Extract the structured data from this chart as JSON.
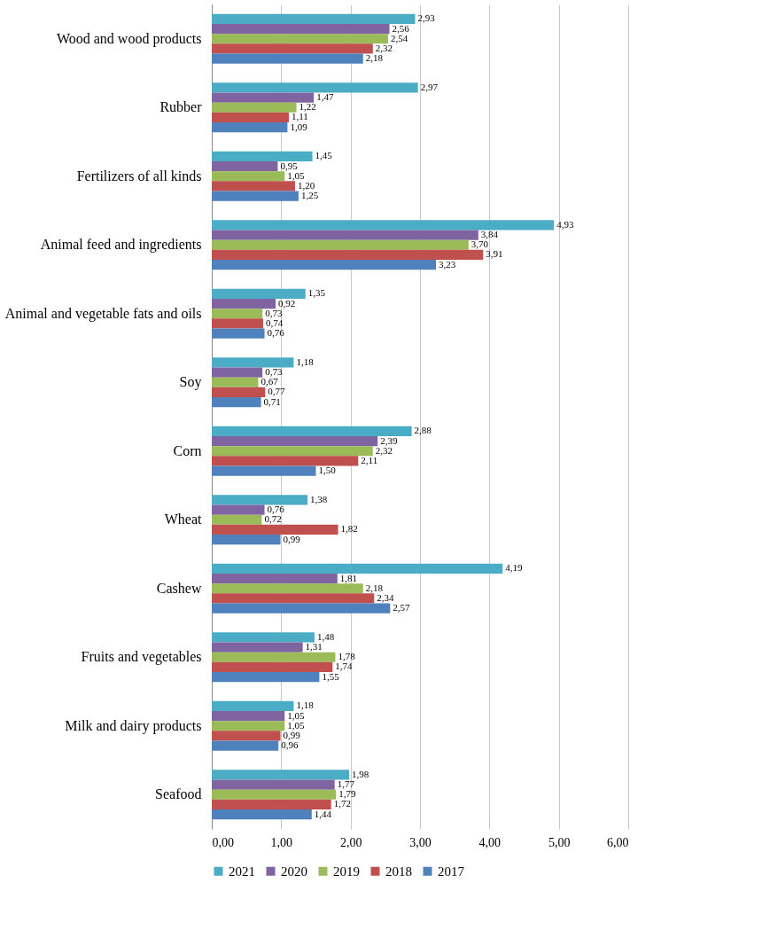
{
  "chart_data": {
    "type": "bar",
    "orientation": "horizontal",
    "categories": [
      "Wood and wood products",
      "Rubber",
      "Fertilizers of all kinds",
      "Animal feed and ingredients",
      "Animal and vegetable fats and oils",
      "Soy",
      "Corn",
      "Wheat",
      "Cashew",
      "Fruits and vegetables",
      "Milk and dairy products",
      "Seafood"
    ],
    "series": [
      {
        "name": "2021",
        "color": "#4bacc6",
        "values": [
          2.93,
          2.97,
          1.45,
          4.93,
          1.35,
          1.18,
          2.88,
          1.38,
          4.19,
          1.48,
          1.18,
          1.98
        ],
        "value_labels": [
          "2,93",
          "2,97",
          "1,45",
          "4,93",
          "1,35",
          "1,18",
          "2,88",
          "1,38",
          "4,19",
          "1,48",
          "1,18",
          "1,98"
        ]
      },
      {
        "name": "2020",
        "color": "#8064a2",
        "values": [
          2.56,
          1.47,
          0.95,
          3.84,
          0.92,
          0.73,
          2.39,
          0.76,
          1.81,
          1.31,
          1.05,
          1.77
        ],
        "value_labels": [
          "2,56",
          "1,47",
          "0,95",
          "3,84",
          "0,92",
          "0,73",
          "2,39",
          "0,76",
          "1,81",
          "1,31",
          "1,05",
          "1,77"
        ]
      },
      {
        "name": "2019",
        "color": "#9bbb59",
        "values": [
          2.54,
          1.22,
          1.05,
          3.7,
          0.73,
          0.67,
          2.32,
          0.72,
          2.18,
          1.78,
          1.05,
          1.79
        ],
        "value_labels": [
          "2,54",
          "1,22",
          "1,05",
          "3,70",
          "0,73",
          "0,67",
          "2,32",
          "0,72",
          "2,18",
          "1,78",
          "1,05",
          "1,79"
        ]
      },
      {
        "name": "2018",
        "color": "#c0504d",
        "values": [
          2.32,
          1.11,
          1.2,
          3.91,
          0.74,
          0.77,
          2.11,
          1.82,
          2.34,
          1.74,
          0.99,
          1.72
        ],
        "value_labels": [
          "2,32",
          "1,11",
          "1,20",
          "3,91",
          "0,74",
          "0,77",
          "2,11",
          "1,82",
          "2,34",
          "1,74",
          "0,99",
          "1,72"
        ]
      },
      {
        "name": "2017",
        "color": "#4f81bd",
        "values": [
          2.18,
          1.09,
          1.25,
          3.23,
          0.76,
          0.71,
          1.5,
          0.99,
          2.57,
          1.55,
          0.96,
          1.44
        ],
        "value_labels": [
          "2,18",
          "1,09",
          "1,25",
          "3,23",
          "0,76",
          "0,71",
          "1,50",
          "0,99",
          "2,57",
          "1,55",
          "0,96",
          "1,44"
        ]
      }
    ],
    "xlim": [
      0,
      6
    ],
    "xticks": [
      {
        "value": 0,
        "label": "0,00"
      },
      {
        "value": 1,
        "label": "1,00"
      },
      {
        "value": 2,
        "label": "2,00"
      },
      {
        "value": 3,
        "label": "3,00"
      },
      {
        "value": 4,
        "label": "4,00"
      },
      {
        "value": 5,
        "label": "5,00"
      },
      {
        "value": 6,
        "label": "6,00"
      }
    ],
    "grid": "x",
    "legend": "bottom"
  }
}
